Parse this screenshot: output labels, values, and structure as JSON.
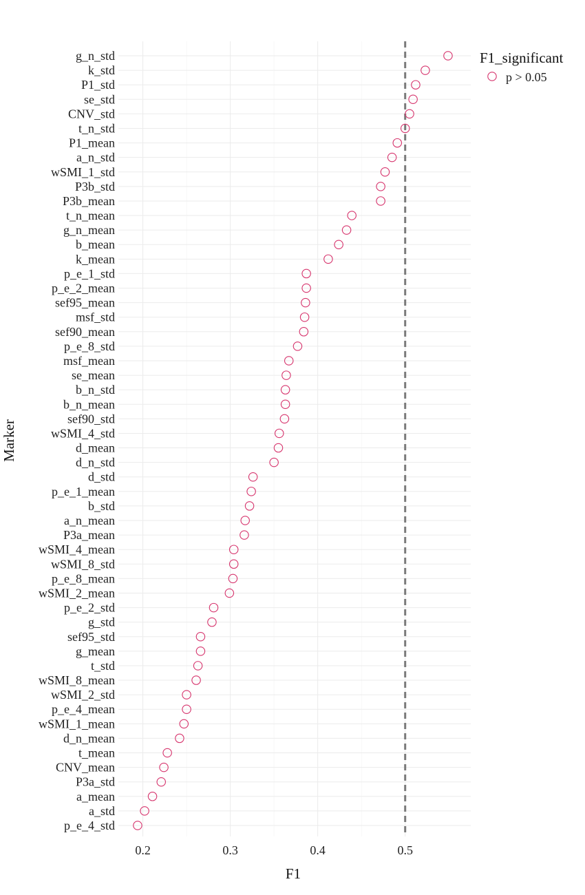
{
  "chart_data": {
    "type": "scatter",
    "xlabel": "F1",
    "ylabel": "Marker",
    "xlim": [
      0.172,
      0.575
    ],
    "xticks": [
      0.2,
      0.3,
      0.4,
      0.5
    ],
    "xtick_labels": [
      "0.2",
      "0.3",
      "0.4",
      "0.5"
    ],
    "reference_line": {
      "x": 0.5,
      "style": "dashed",
      "color": "#7a7a7a"
    },
    "grid": true,
    "legend": {
      "title": "F1_significant",
      "placement": "top-right",
      "entries": [
        {
          "label": "p > 0.05",
          "color": "#d6336c",
          "marker": "open-circle"
        }
      ]
    },
    "categories": [
      "g_n_std",
      "k_std",
      "P1_std",
      "se_std",
      "CNV_std",
      "t_n_std",
      "P1_mean",
      "a_n_std",
      "wSMI_1_std",
      "P3b_std",
      "P3b_mean",
      "t_n_mean",
      "g_n_mean",
      "b_mean",
      "k_mean",
      "p_e_1_std",
      "p_e_2_mean",
      "sef95_mean",
      "msf_std",
      "sef90_mean",
      "p_e_8_std",
      "msf_mean",
      "se_mean",
      "b_n_std",
      "b_n_mean",
      "sef90_std",
      "wSMI_4_std",
      "d_mean",
      "d_n_std",
      "d_std",
      "p_e_1_mean",
      "b_std",
      "a_n_mean",
      "P3a_mean",
      "wSMI_4_mean",
      "wSMI_8_std",
      "p_e_8_mean",
      "wSMI_2_mean",
      "p_e_2_std",
      "g_std",
      "sef95_std",
      "g_mean",
      "t_std",
      "wSMI_8_mean",
      "wSMI_2_std",
      "p_e_4_mean",
      "wSMI_1_mean",
      "d_n_mean",
      "t_mean",
      "CNV_mean",
      "P3a_std",
      "a_mean",
      "a_std",
      "p_e_4_std"
    ],
    "values": [
      0.549,
      0.523,
      0.512,
      0.509,
      0.505,
      0.5,
      0.491,
      0.485,
      0.477,
      0.472,
      0.472,
      0.439,
      0.433,
      0.424,
      0.412,
      0.387,
      0.387,
      0.386,
      0.385,
      0.384,
      0.377,
      0.367,
      0.364,
      0.363,
      0.363,
      0.362,
      0.356,
      0.355,
      0.35,
      0.326,
      0.324,
      0.322,
      0.317,
      0.316,
      0.304,
      0.304,
      0.303,
      0.299,
      0.281,
      0.279,
      0.266,
      0.266,
      0.263,
      0.261,
      0.25,
      0.25,
      0.247,
      0.242,
      0.228,
      0.224,
      0.221,
      0.211,
      0.202,
      0.194
    ],
    "series": [
      {
        "name": "p > 0.05",
        "color": "#d6336c"
      }
    ]
  }
}
